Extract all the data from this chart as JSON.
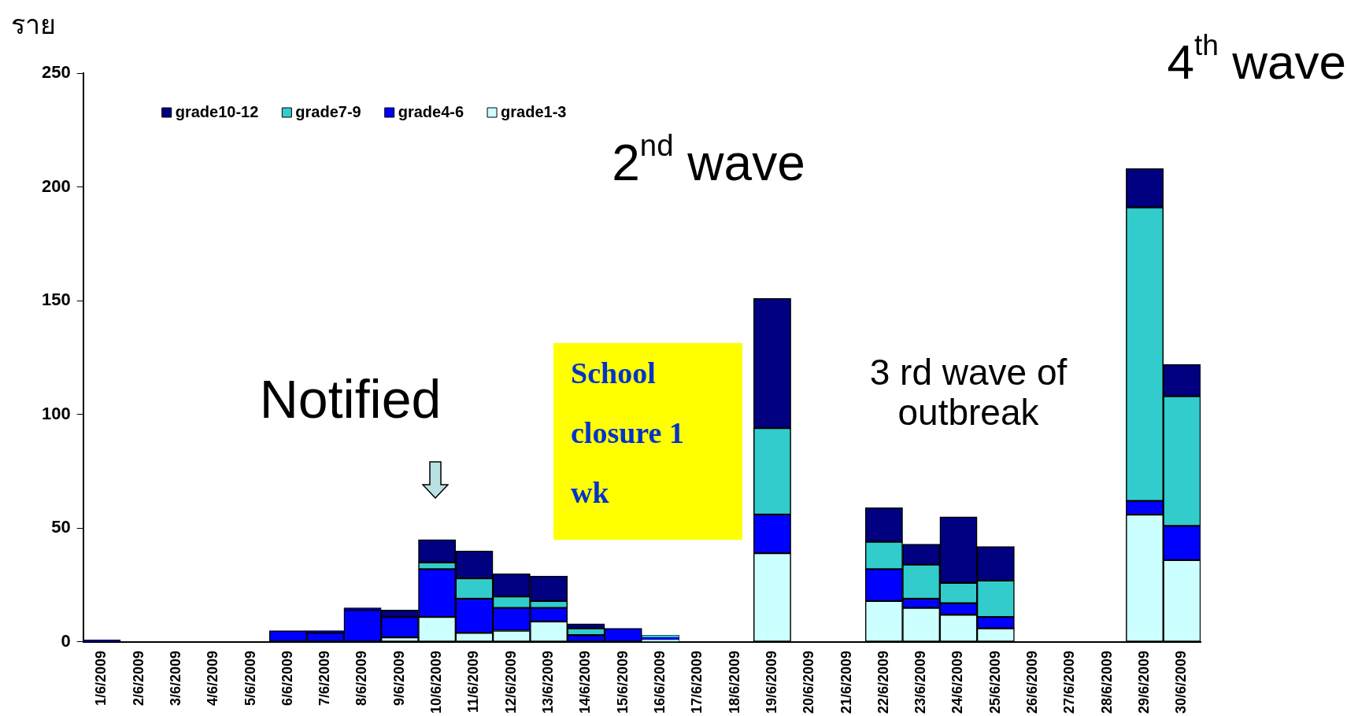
{
  "chart_data": {
    "type": "bar",
    "stacked": true,
    "ylabel": "ราย",
    "categories": [
      "1/6/2009",
      "2/6/2009",
      "3/6/2009",
      "4/6/2009",
      "5/6/2009",
      "6/6/2009",
      "7/6/2009",
      "8/6/2009",
      "9/6/2009",
      "10/6/2009",
      "11/6/2009",
      "12/6/2009",
      "13/6/2009",
      "14/6/2009",
      "15/6/2009",
      "16/6/2009",
      "17/6/2009",
      "18/6/2009",
      "19/6/2009",
      "20/6/2009",
      "21/6/2009",
      "22/6/2009",
      "23/6/2009",
      "24/6/2009",
      "25/6/2009",
      "26/6/2009",
      "27/6/2009",
      "28/6/2009",
      "29/6/2009",
      "30/6/2009"
    ],
    "series": [
      {
        "name": "grade1-3",
        "color": "#ccffff",
        "values": [
          0,
          0,
          0,
          0,
          0,
          0,
          0,
          0,
          2,
          11,
          4,
          5,
          9,
          0,
          0,
          1,
          0,
          0,
          39,
          0,
          0,
          18,
          15,
          12,
          6,
          0,
          0,
          0,
          56,
          36
        ]
      },
      {
        "name": "grade4-6",
        "color": "#0000ff",
        "values": [
          0,
          0,
          0,
          0,
          0,
          5,
          4,
          14,
          9,
          21,
          15,
          10,
          6,
          3,
          6,
          1,
          0,
          0,
          17,
          0,
          0,
          14,
          4,
          5,
          5,
          0,
          0,
          0,
          6,
          15
        ]
      },
      {
        "name": "grade7-9",
        "color": "#33cccc",
        "values": [
          0,
          0,
          0,
          0,
          0,
          0,
          0,
          0,
          0,
          3,
          9,
          5,
          3,
          3,
          0,
          1,
          0,
          0,
          38,
          0,
          0,
          12,
          15,
          9,
          16,
          0,
          0,
          0,
          129,
          57
        ]
      },
      {
        "name": "grade10-12",
        "color": "#000080",
        "values": [
          1,
          0,
          0,
          0,
          0,
          0,
          1,
          1,
          3,
          10,
          12,
          10,
          11,
          2,
          0,
          0,
          0,
          0,
          57,
          0,
          0,
          15,
          9,
          29,
          15,
          0,
          0,
          0,
          17,
          14
        ]
      }
    ],
    "ylim": [
      0,
      250
    ],
    "yticks": [
      0,
      50,
      100,
      150,
      200,
      250
    ],
    "grid": false,
    "legend": "top left",
    "annotations": [
      "Notified",
      "School closure 1 wk",
      "2$^{nd}$ wave",
      "3 rd wave of outbreak",
      "4$^{th}$ wave"
    ]
  }
}
